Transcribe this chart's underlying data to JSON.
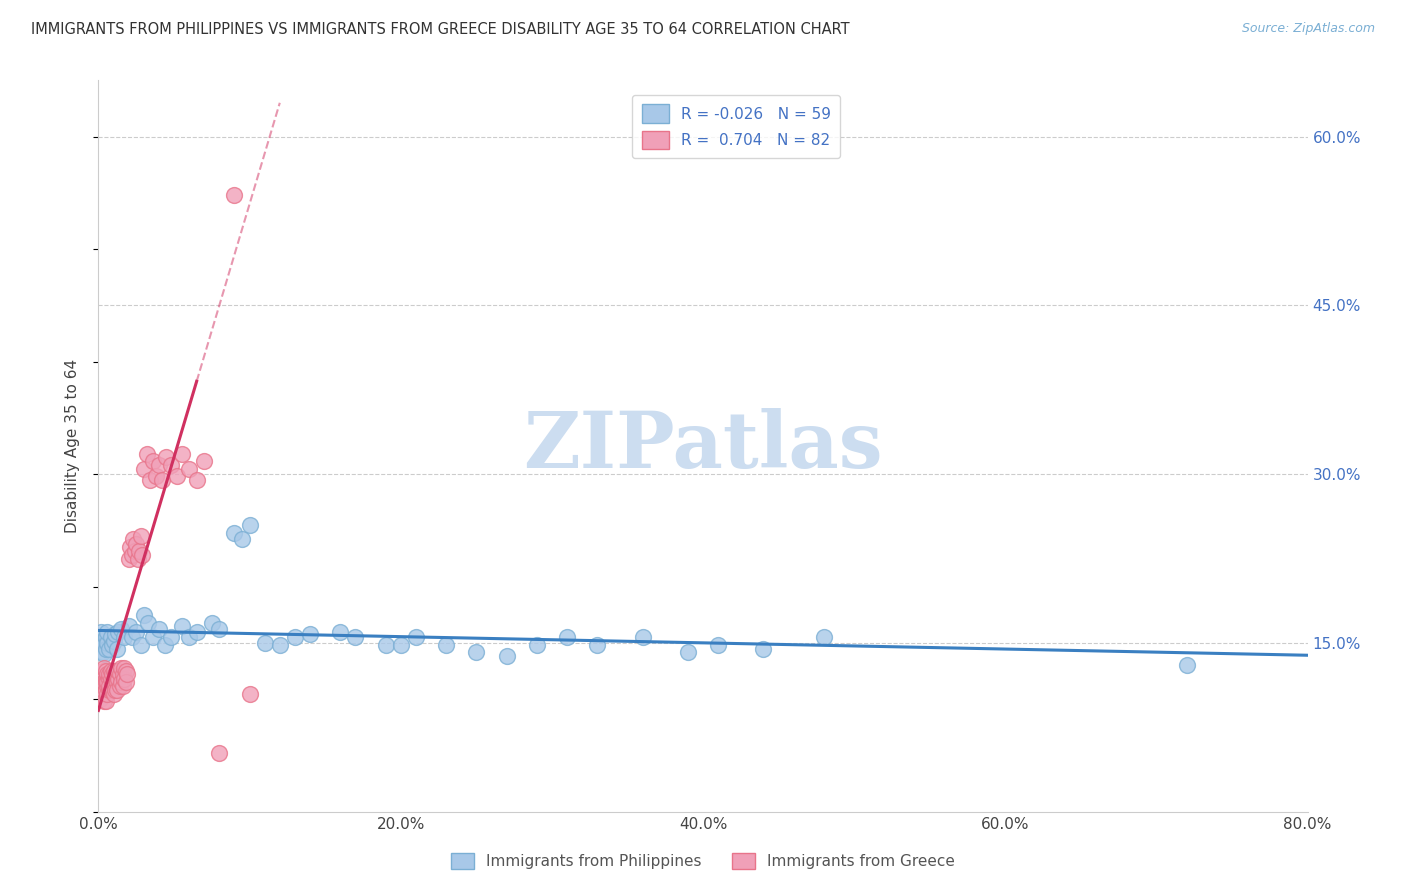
{
  "title": "IMMIGRANTS FROM PHILIPPINES VS IMMIGRANTS FROM GREECE DISABILITY AGE 35 TO 64 CORRELATION CHART",
  "source": "Source: ZipAtlas.com",
  "ylabel": "Disability Age 35 to 64",
  "xlim": [
    0.0,
    0.8
  ],
  "ylim": [
    0.0,
    0.65
  ],
  "xtick_labels": [
    "0.0%",
    "20.0%",
    "40.0%",
    "60.0%",
    "80.0%"
  ],
  "xtick_vals": [
    0.0,
    0.2,
    0.4,
    0.6,
    0.8
  ],
  "ytick_labels": [
    "15.0%",
    "30.0%",
    "45.0%",
    "60.0%"
  ],
  "ytick_vals": [
    0.15,
    0.3,
    0.45,
    0.6
  ],
  "background_color": "#ffffff",
  "watermark": "ZIPatlas",
  "watermark_color": "#ccddf0",
  "philippines": {
    "name": "Immigrants from Philippines",
    "R": -0.026,
    "N": 59,
    "dot_face": "#a8c8e8",
    "dot_edge": "#7bafd4",
    "trend_color": "#3a7fc1",
    "x": [
      0.001,
      0.002,
      0.002,
      0.003,
      0.003,
      0.004,
      0.004,
      0.005,
      0.005,
      0.006,
      0.006,
      0.007,
      0.008,
      0.009,
      0.01,
      0.011,
      0.012,
      0.013,
      0.015,
      0.017,
      0.02,
      0.022,
      0.025,
      0.028,
      0.03,
      0.033,
      0.036,
      0.04,
      0.044,
      0.048,
      0.055,
      0.06,
      0.065,
      0.075,
      0.08,
      0.09,
      0.095,
      0.1,
      0.11,
      0.12,
      0.13,
      0.14,
      0.16,
      0.17,
      0.19,
      0.2,
      0.21,
      0.23,
      0.25,
      0.27,
      0.29,
      0.31,
      0.33,
      0.36,
      0.39,
      0.41,
      0.44,
      0.48,
      0.72
    ],
    "y": [
      0.155,
      0.148,
      0.16,
      0.142,
      0.152,
      0.148,
      0.14,
      0.155,
      0.145,
      0.15,
      0.16,
      0.145,
      0.155,
      0.148,
      0.152,
      0.158,
      0.145,
      0.16,
      0.162,
      0.155,
      0.165,
      0.155,
      0.16,
      0.148,
      0.175,
      0.168,
      0.155,
      0.162,
      0.148,
      0.155,
      0.165,
      0.155,
      0.16,
      0.168,
      0.162,
      0.248,
      0.242,
      0.255,
      0.15,
      0.148,
      0.155,
      0.158,
      0.16,
      0.155,
      0.148,
      0.148,
      0.155,
      0.148,
      0.142,
      0.138,
      0.148,
      0.155,
      0.148,
      0.155,
      0.142,
      0.148,
      0.145,
      0.155,
      0.13
    ]
  },
  "greece": {
    "name": "Immigrants from Greece",
    "R": 0.704,
    "N": 82,
    "dot_face": "#f0a0b8",
    "dot_edge": "#e8748a",
    "trend_color": "#d03060",
    "x": [
      0.001,
      0.001,
      0.002,
      0.002,
      0.002,
      0.003,
      0.003,
      0.003,
      0.003,
      0.004,
      0.004,
      0.004,
      0.004,
      0.005,
      0.005,
      0.005,
      0.005,
      0.005,
      0.006,
      0.006,
      0.006,
      0.006,
      0.007,
      0.007,
      0.007,
      0.007,
      0.008,
      0.008,
      0.008,
      0.009,
      0.009,
      0.009,
      0.01,
      0.01,
      0.01,
      0.01,
      0.011,
      0.011,
      0.011,
      0.012,
      0.012,
      0.012,
      0.013,
      0.013,
      0.014,
      0.014,
      0.015,
      0.015,
      0.016,
      0.016,
      0.017,
      0.017,
      0.018,
      0.018,
      0.019,
      0.02,
      0.021,
      0.022,
      0.023,
      0.024,
      0.025,
      0.026,
      0.027,
      0.028,
      0.029,
      0.03,
      0.032,
      0.034,
      0.036,
      0.038,
      0.04,
      0.042,
      0.045,
      0.048,
      0.052,
      0.055,
      0.06,
      0.065,
      0.07,
      0.08,
      0.09,
      0.1
    ],
    "y": [
      0.1,
      0.118,
      0.108,
      0.122,
      0.115,
      0.112,
      0.125,
      0.105,
      0.118,
      0.115,
      0.105,
      0.128,
      0.098,
      0.118,
      0.108,
      0.125,
      0.098,
      0.115,
      0.112,
      0.122,
      0.105,
      0.115,
      0.118,
      0.108,
      0.122,
      0.112,
      0.125,
      0.108,
      0.118,
      0.122,
      0.112,
      0.108,
      0.125,
      0.115,
      0.105,
      0.118,
      0.122,
      0.112,
      0.108,
      0.125,
      0.115,
      0.108,
      0.118,
      0.125,
      0.122,
      0.112,
      0.128,
      0.115,
      0.122,
      0.112,
      0.128,
      0.118,
      0.125,
      0.115,
      0.122,
      0.225,
      0.235,
      0.228,
      0.242,
      0.232,
      0.238,
      0.225,
      0.232,
      0.245,
      0.228,
      0.305,
      0.318,
      0.295,
      0.312,
      0.298,
      0.308,
      0.295,
      0.315,
      0.308,
      0.298,
      0.318,
      0.305,
      0.295,
      0.312,
      0.052,
      0.548,
      0.105
    ]
  },
  "legend_R_blue": "-0.026",
  "legend_N_blue": "59",
  "legend_R_pink": "0.704",
  "legend_N_pink": "82"
}
